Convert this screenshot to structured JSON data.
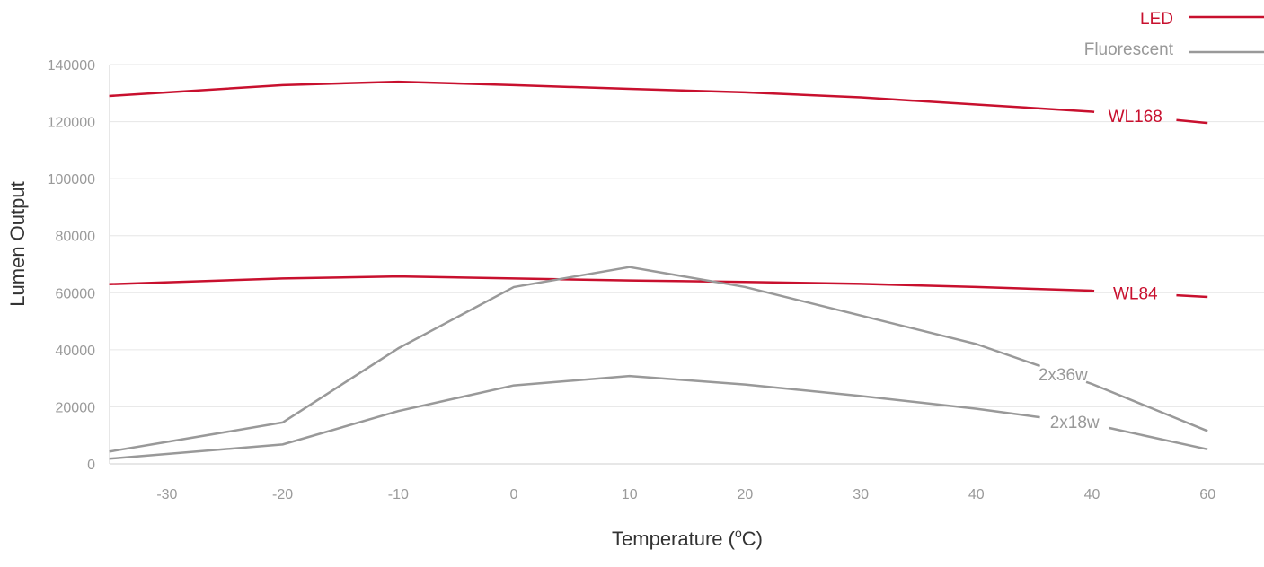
{
  "chart_data": {
    "type": "line",
    "xlabel": "Temperature (oC)",
    "xlabel_main": "Temperature (",
    "xlabel_sup": "o",
    "xlabel_end": "C)",
    "ylabel": "Lumen Output",
    "ylim": [
      0,
      140000
    ],
    "y_ticks": [
      "0",
      "20000",
      "40000",
      "60000",
      "80000",
      "100000",
      "120000",
      "140000"
    ],
    "x_tick_labels": [
      "-30",
      "-20",
      "-10",
      "0",
      "10",
      "20",
      "30",
      "40",
      "40",
      "60"
    ],
    "grid": "horizontal",
    "legend": [
      {
        "label": "LED",
        "color": "#c8102e"
      },
      {
        "label": "Fluorescent",
        "color": "#999999"
      }
    ],
    "legend_position": "top-right",
    "series": [
      {
        "name": "WL168",
        "group": "LED",
        "color": "#c8102e",
        "points": [
          [
            -35,
            129000
          ],
          [
            -20,
            132800
          ],
          [
            -10,
            134000
          ],
          [
            0,
            132800
          ],
          [
            10,
            131500
          ],
          [
            20,
            130300
          ],
          [
            30,
            128500
          ],
          [
            40,
            126000
          ],
          [
            50,
            123500
          ],
          [
            60,
            119500
          ]
        ],
        "gap": [
          50.2,
          57.3
        ]
      },
      {
        "name": "WL84",
        "group": "LED",
        "color": "#c8102e",
        "points": [
          [
            -35,
            63000
          ],
          [
            -20,
            65000
          ],
          [
            -10,
            65700
          ],
          [
            0,
            65000
          ],
          [
            10,
            64300
          ],
          [
            20,
            63800
          ],
          [
            30,
            63100
          ],
          [
            40,
            62000
          ],
          [
            50,
            60700
          ],
          [
            60,
            58500
          ]
        ],
        "gap": [
          50.2,
          57.3
        ]
      },
      {
        "name": "2x36w",
        "group": "Fluorescent",
        "color": "#999999",
        "points": [
          [
            -35,
            4300
          ],
          [
            -20,
            14500
          ],
          [
            -10,
            40500
          ],
          [
            0,
            62000
          ],
          [
            10,
            69000
          ],
          [
            20,
            62000
          ],
          [
            30,
            52000
          ],
          [
            40,
            42000
          ],
          [
            50,
            28000
          ],
          [
            60,
            11500
          ]
        ],
        "gap": [
          45.5,
          49.5
        ]
      },
      {
        "name": "2x18w",
        "group": "Fluorescent",
        "color": "#999999",
        "points": [
          [
            -35,
            1800
          ],
          [
            -20,
            6800
          ],
          [
            -10,
            18500
          ],
          [
            0,
            27500
          ],
          [
            10,
            30800
          ],
          [
            20,
            27800
          ],
          [
            30,
            23800
          ],
          [
            40,
            19300
          ],
          [
            50,
            13900
          ],
          [
            60,
            5100
          ]
        ],
        "gap": [
          45.5,
          51.5
        ]
      }
    ]
  }
}
